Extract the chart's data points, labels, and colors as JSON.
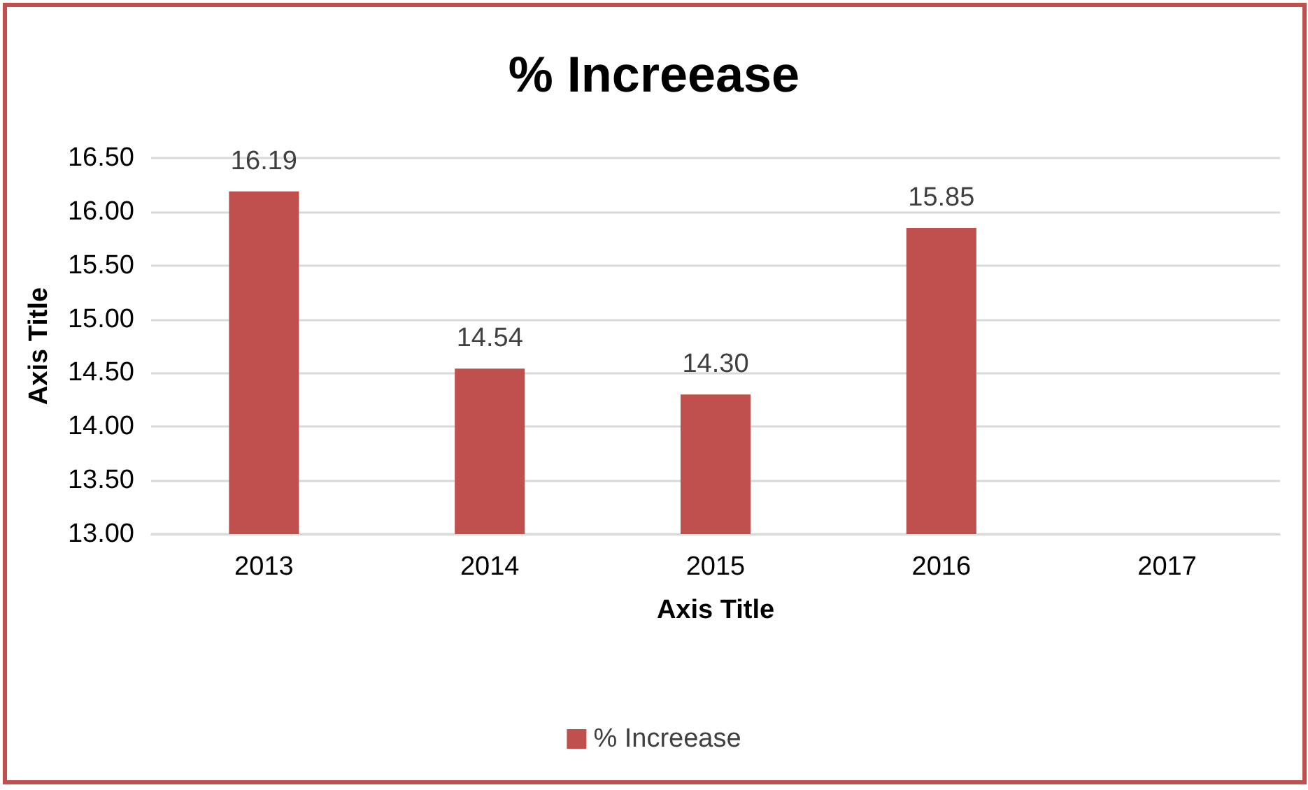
{
  "chart_data": {
    "type": "bar",
    "title": "% Increease",
    "xlabel": "Axis Title",
    "ylabel": "Axis Title",
    "categories": [
      "2013",
      "2014",
      "2015",
      "2016",
      "2017"
    ],
    "series": [
      {
        "name": "% Increease",
        "color": "#c0504d",
        "values": [
          16.19,
          14.54,
          14.3,
          15.85,
          null
        ],
        "value_labels": [
          "16.19",
          "14.54",
          "14.30",
          "15.85",
          null
        ]
      }
    ],
    "ylim": [
      13,
      16.5
    ],
    "yticks": [
      {
        "value": 13,
        "label": "13.00"
      },
      {
        "value": 13.5,
        "label": "13.50"
      },
      {
        "value": 14,
        "label": "14.00"
      },
      {
        "value": 14.5,
        "label": "14.50"
      },
      {
        "value": 15,
        "label": "15.00"
      },
      {
        "value": 15.5,
        "label": "15.50"
      },
      {
        "value": 16,
        "label": "16.00"
      },
      {
        "value": 16.5,
        "label": "16.50"
      }
    ],
    "grid": "y",
    "legend": "bottom"
  }
}
